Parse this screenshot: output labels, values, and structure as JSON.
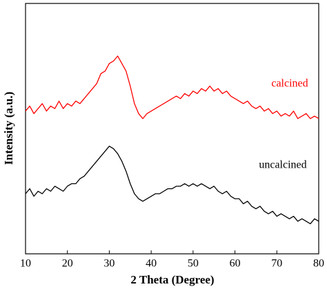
{
  "chart_data": {
    "type": "line",
    "x_label": "2 Theta (Degree)",
    "y_label": "Intensity (a.u.)",
    "x": [
      10,
      11,
      12,
      13,
      14,
      15,
      16,
      17,
      18,
      19,
      20,
      21,
      22,
      23,
      24,
      25,
      26,
      27,
      28,
      29,
      30,
      31,
      32,
      33,
      34,
      35,
      36,
      37,
      38,
      39,
      40,
      41,
      42,
      43,
      44,
      45,
      46,
      47,
      48,
      49,
      50,
      51,
      52,
      53,
      54,
      55,
      56,
      57,
      58,
      59,
      60,
      61,
      62,
      63,
      64,
      65,
      66,
      67,
      68,
      69,
      70,
      71,
      72,
      73,
      74,
      75,
      76,
      77,
      78,
      79,
      80
    ],
    "series": [
      {
        "name": "calcined",
        "color": "#ff0000",
        "values": [
          57,
          59,
          56,
          58,
          60,
          57,
          59,
          58,
          61,
          58,
          60,
          59,
          61,
          60,
          62,
          64,
          66,
          68,
          72,
          73,
          76,
          77,
          79,
          76,
          73,
          67,
          60,
          56,
          54,
          56,
          57,
          58,
          59,
          60,
          61,
          62,
          63,
          62,
          64,
          63,
          65,
          64,
          66,
          65,
          67,
          65,
          66,
          64,
          65,
          63,
          62,
          61,
          60,
          61,
          59,
          58,
          59,
          57,
          58,
          56,
          57,
          55,
          56,
          55,
          57,
          54,
          55,
          56,
          54,
          55,
          54
        ]
      },
      {
        "name": "uncalcined",
        "color": "#000000",
        "values": [
          24,
          26,
          23,
          25,
          24,
          26,
          25,
          27,
          26,
          25,
          27,
          28,
          28,
          30,
          31,
          33,
          35,
          37,
          39,
          41,
          43,
          42,
          40,
          37,
          33,
          28,
          24,
          22,
          21,
          22,
          23,
          24,
          24,
          25,
          26,
          26,
          27,
          27,
          28,
          27,
          28,
          27,
          28,
          27,
          26,
          27,
          25,
          24,
          25,
          23,
          22,
          22,
          20,
          21,
          19,
          18,
          19,
          17,
          16,
          17,
          15,
          16,
          15,
          14,
          15,
          13,
          14,
          13,
          12,
          14,
          13
        ]
      }
    ],
    "xlim": [
      10,
      80
    ],
    "xticks": [
      10,
      20,
      30,
      40,
      50,
      60,
      70,
      80
    ],
    "ylim": [
      0,
      100
    ]
  }
}
